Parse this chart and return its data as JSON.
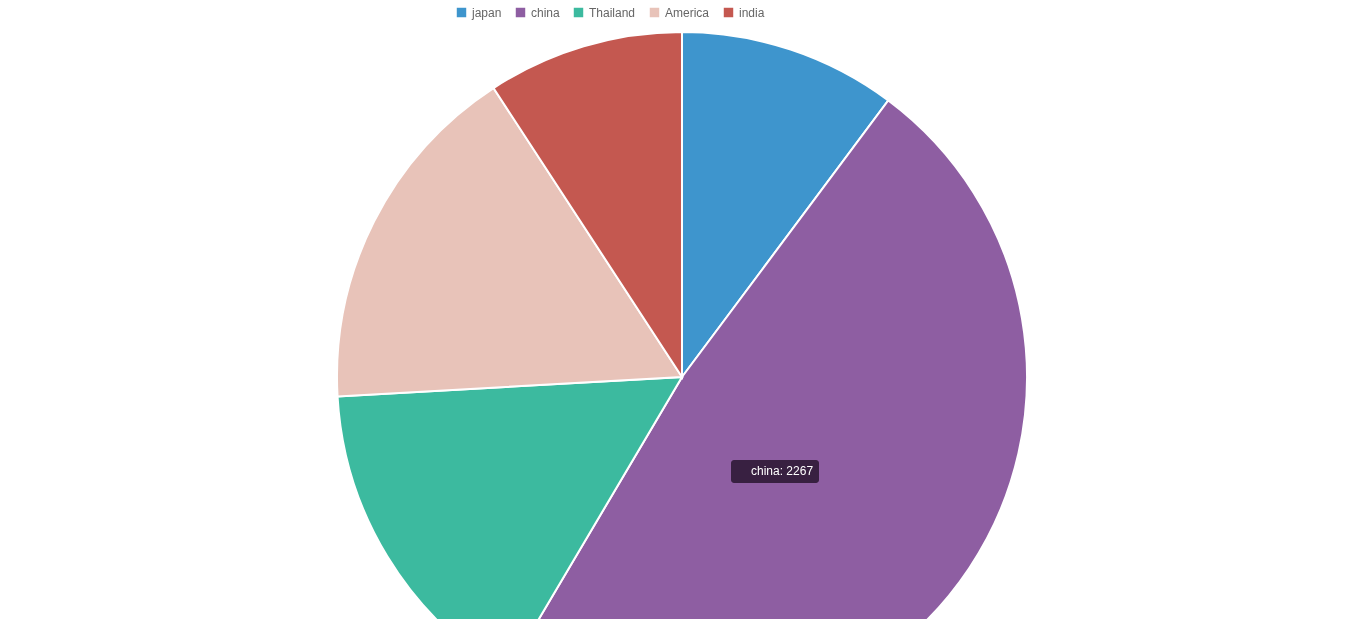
{
  "chart_data": {
    "type": "pie",
    "categories": [
      "japan",
      "china",
      "Thailand",
      "America",
      "india"
    ],
    "values": [
      10.2,
      48.3,
      15.6,
      16.7,
      9.2
    ],
    "colors": [
      "#3e95cd",
      "#8e5ea2",
      "#3cba9f",
      "#e8c3b9",
      "#c45850"
    ],
    "legend": "top",
    "annotations": [
      "china: 2267"
    ]
  }
}
